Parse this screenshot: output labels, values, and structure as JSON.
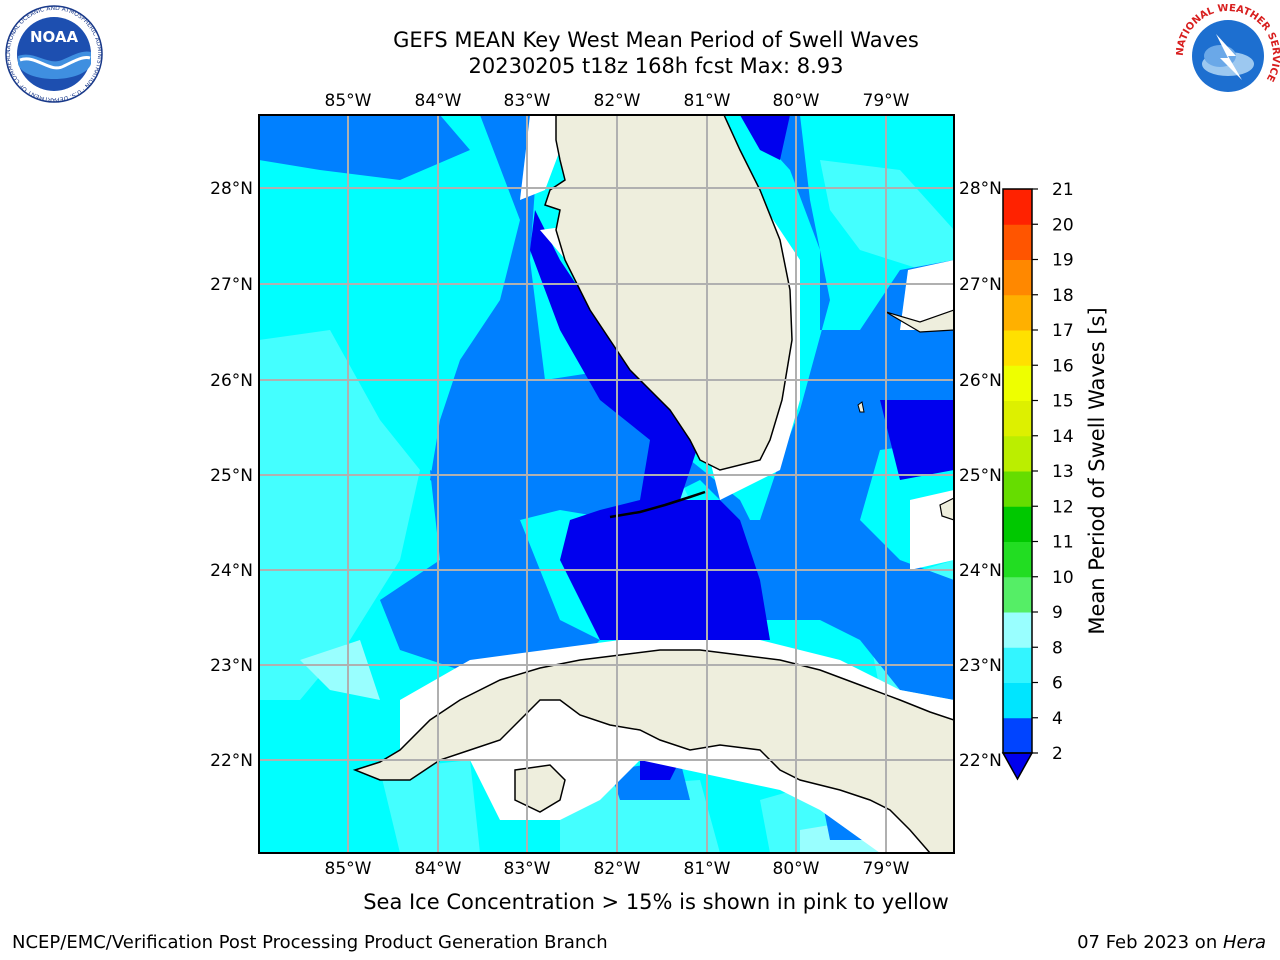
{
  "header": {
    "title_line1": "GEFS MEAN Key West Mean Period of Swell Waves",
    "title_line2": "20230205 t18z 168h fcst   Max: 8.93"
  },
  "logos": {
    "noaa_text": "NOAA",
    "noaa_ring": "NATIONAL OCEANIC AND ATMOSPHERIC ADMINISTRATION · U.S. DEPARTMENT OF COMMERCE",
    "nws_ring": "NATIONAL WEATHER SERVICE"
  },
  "map": {
    "lon_labels": [
      "85°W",
      "84°W",
      "83°W",
      "82°W",
      "81°W",
      "80°W",
      "79°W"
    ],
    "lat_labels": [
      "28°N",
      "27°N",
      "26°N",
      "25°N",
      "24°N",
      "23°N",
      "22°N"
    ],
    "land_color": "#eeeedd",
    "grid_color": "#b0b0b0"
  },
  "colorbar": {
    "title": "Mean Period of Swell Waves [s]",
    "ticks": [
      "2",
      "4",
      "6",
      "8",
      "9",
      "10",
      "11",
      "12",
      "13",
      "14",
      "15",
      "16",
      "17",
      "18",
      "19",
      "20",
      "21"
    ],
    "colors": [
      "#0044ff",
      "#00e5ff",
      "#33f5ff",
      "#99ffff",
      "#55ee66",
      "#22dd22",
      "#00c800",
      "#66dd00",
      "#bbee00",
      "#ddf000",
      "#eeff00",
      "#ffe000",
      "#ffb000",
      "#ff8800",
      "#ff5500",
      "#ff2200"
    ],
    "extend_color": "#0000ee"
  },
  "caption": "Sea Ice Concentration > 15% is shown in pink to yellow",
  "footer": {
    "left": "NCEP/EMC/Verification Post Processing Product Generation Branch",
    "right_prefix": "07 Feb 2023 on ",
    "right_italic": "Hera"
  }
}
